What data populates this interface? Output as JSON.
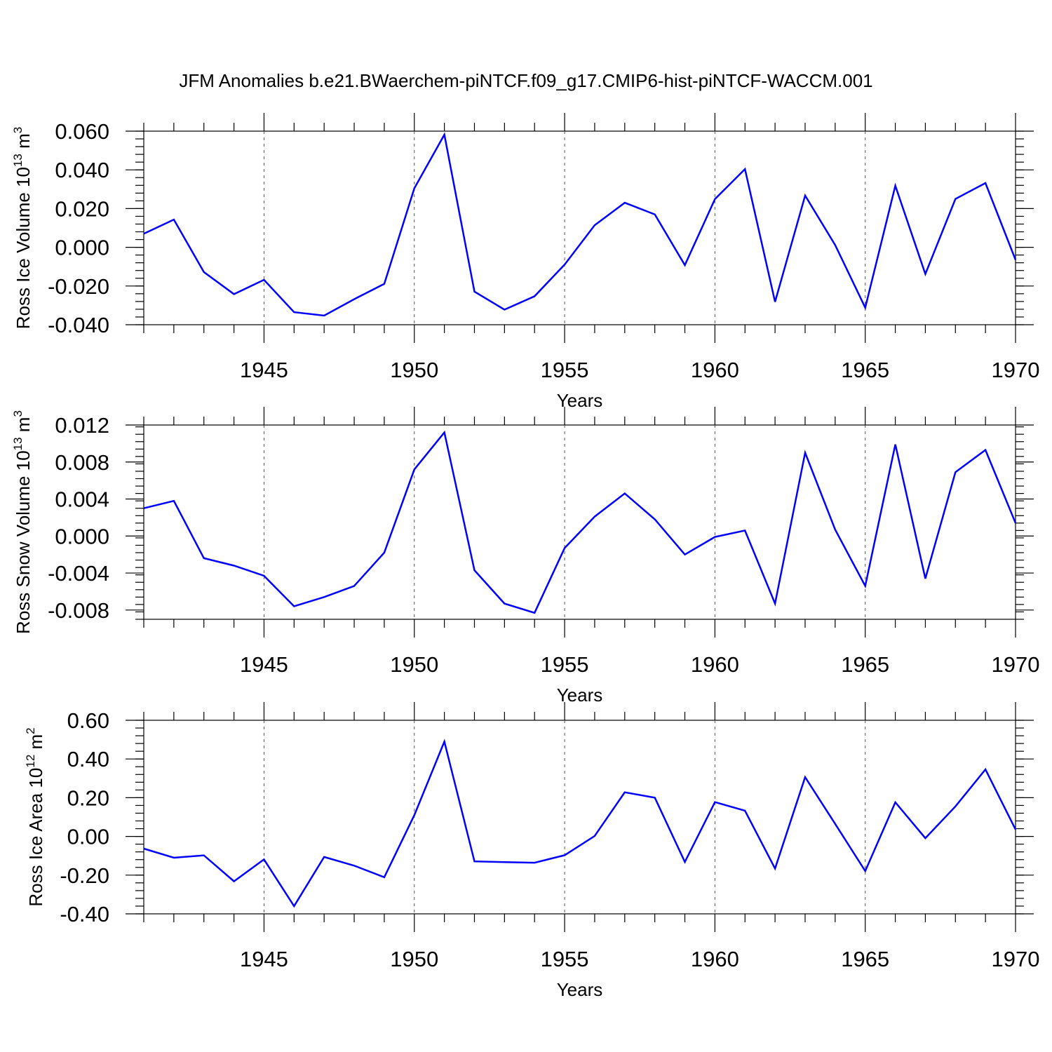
{
  "title": "JFM Anomalies b.e21.BWaerchem-piNTCF.f09_g17.CMIP6-hist-piNTCF-WACCM.001",
  "colors": {
    "line": "#0000ff",
    "axis": "#000000",
    "grid": "#555555"
  },
  "chart_data": [
    {
      "type": "line",
      "name": "ross-ice-volume",
      "ylabel_main": "Ross Ice Volume 10",
      "ylabel_exp": "13",
      "ylabel_unit": " m",
      "ylabel_unit_exp": "3",
      "xlabel": "Years",
      "xlim": [
        1941,
        1970
      ],
      "ylim": [
        -0.04,
        0.06
      ],
      "yticks": [
        -0.04,
        -0.02,
        0.0,
        0.02,
        0.04,
        0.06
      ],
      "ytick_labels": [
        "-0.040",
        "-0.020",
        "0.000",
        "0.020",
        "0.040",
        "0.060"
      ],
      "xticks": [
        1945,
        1950,
        1955,
        1960,
        1965,
        1970
      ],
      "xtick_labels": [
        "1945",
        "1950",
        "1955",
        "1960",
        "1965",
        "1970"
      ],
      "x": [
        1941,
        1942,
        1943,
        1944,
        1945,
        1946,
        1947,
        1948,
        1949,
        1950,
        1951,
        1952,
        1953,
        1954,
        1955,
        1956,
        1957,
        1958,
        1959,
        1960,
        1961,
        1962,
        1963,
        1964,
        1965,
        1966,
        1967,
        1968,
        1969,
        1970
      ],
      "values": [
        0.007,
        0.0143,
        -0.0128,
        -0.0242,
        -0.0168,
        -0.0335,
        -0.0353,
        -0.0268,
        -0.0189,
        0.0305,
        0.0582,
        -0.0229,
        -0.0322,
        -0.0253,
        -0.0089,
        0.0114,
        0.023,
        0.017,
        -0.0092,
        0.0249,
        0.0404,
        -0.0282,
        0.0267,
        0.0012,
        -0.0312,
        0.0318,
        -0.0138,
        0.025,
        0.0332,
        -0.0065
      ]
    },
    {
      "type": "line",
      "name": "ross-snow-volume",
      "ylabel_main": "Ross Snow Volume 10",
      "ylabel_exp": "13",
      "ylabel_unit": " m",
      "ylabel_unit_exp": "3",
      "xlabel": "Years",
      "xlim": [
        1941,
        1970
      ],
      "ylim": [
        -0.009,
        0.012
      ],
      "yticks": [
        -0.008,
        -0.004,
        0.0,
        0.004,
        0.008,
        0.012
      ],
      "ytick_labels": [
        "-0.008",
        "-0.004",
        "0.000",
        "0.004",
        "0.008",
        "0.012"
      ],
      "xticks": [
        1945,
        1950,
        1955,
        1960,
        1965,
        1970
      ],
      "xtick_labels": [
        "1945",
        "1950",
        "1955",
        "1960",
        "1965",
        "1970"
      ],
      "x": [
        1941,
        1942,
        1943,
        1944,
        1945,
        1946,
        1947,
        1948,
        1949,
        1950,
        1951,
        1952,
        1953,
        1954,
        1955,
        1956,
        1957,
        1958,
        1959,
        1960,
        1961,
        1962,
        1963,
        1964,
        1965,
        1966,
        1967,
        1968,
        1969,
        1970
      ],
      "values": [
        0.003,
        0.0038,
        -0.0024,
        -0.0032,
        -0.0043,
        -0.0076,
        -0.0066,
        -0.0054,
        -0.0018,
        0.0072,
        0.0112,
        -0.0037,
        -0.0073,
        -0.0083,
        -0.0013,
        0.0021,
        0.0046,
        0.0018,
        -0.002,
        -0.0001,
        0.0006,
        -0.0073,
        0.009,
        0.0007,
        -0.0054,
        0.0099,
        -0.0046,
        0.0069,
        0.0093,
        0.0014
      ]
    },
    {
      "type": "line",
      "name": "ross-ice-area",
      "ylabel_main": "Ross Ice Area 10",
      "ylabel_exp": "12",
      "ylabel_unit": " m",
      "ylabel_unit_exp": "2",
      "xlabel": "Years",
      "xlim": [
        1941,
        1970
      ],
      "ylim": [
        -0.4,
        0.6
      ],
      "yticks": [
        -0.4,
        -0.2,
        0.0,
        0.2,
        0.4,
        0.6
      ],
      "ytick_labels": [
        "-0.40",
        "-0.20",
        "0.00",
        "0.20",
        "0.40",
        "0.60"
      ],
      "xticks": [
        1945,
        1950,
        1955,
        1960,
        1965,
        1970
      ],
      "xtick_labels": [
        "1945",
        "1950",
        "1955",
        "1960",
        "1965",
        "1970"
      ],
      "x": [
        1941,
        1942,
        1943,
        1944,
        1945,
        1946,
        1947,
        1948,
        1949,
        1950,
        1951,
        1952,
        1953,
        1954,
        1955,
        1956,
        1957,
        1958,
        1959,
        1960,
        1961,
        1962,
        1963,
        1964,
        1965,
        1966,
        1967,
        1968,
        1969,
        1970
      ],
      "values": [
        -0.063,
        -0.11,
        -0.098,
        -0.232,
        -0.119,
        -0.36,
        -0.106,
        -0.151,
        -0.211,
        0.11,
        0.49,
        -0.129,
        -0.133,
        -0.136,
        -0.097,
        0.002,
        0.228,
        0.2,
        -0.132,
        0.177,
        0.133,
        -0.166,
        0.306,
        0.065,
        -0.179,
        0.176,
        -0.009,
        0.155,
        0.346,
        0.036
      ]
    }
  ]
}
